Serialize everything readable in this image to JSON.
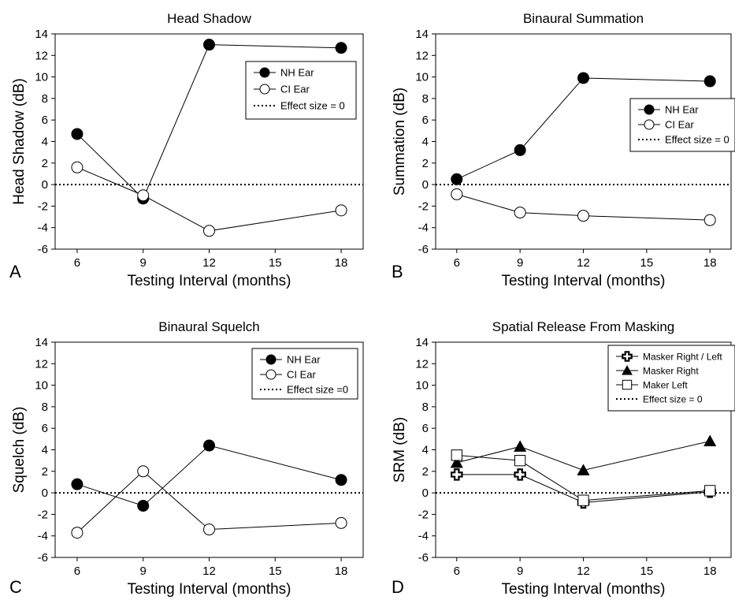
{
  "chart_data": [
    {
      "type": "line",
      "panel_letter": "A",
      "title": "Head Shadow",
      "xlabel": "Testing Interval (months)",
      "ylabel": "Head Shadow (dB)",
      "xlim": [
        5,
        19
      ],
      "ylim": [
        -6,
        14
      ],
      "xticks": [
        6,
        9,
        12,
        15,
        18
      ],
      "yticks": [
        -6,
        -4,
        -2,
        0,
        2,
        4,
        6,
        8,
        10,
        12,
        14
      ],
      "x": [
        6,
        9,
        12,
        18
      ],
      "legend_placement": "top-right",
      "series": [
        {
          "name": "NH Ear",
          "marker": "filled-circle",
          "values": [
            4.7,
            -1.3,
            13.0,
            12.7
          ]
        },
        {
          "name": "CI Ear",
          "marker": "open-circle",
          "values": [
            1.6,
            -1.0,
            -4.3,
            -2.4
          ]
        }
      ],
      "reference_line": {
        "name": "Effect size = 0",
        "y": 0
      }
    },
    {
      "type": "line",
      "panel_letter": "B",
      "title": "Binaural Summation",
      "xlabel": "Testing Interval (months)",
      "ylabel": "Summation (dB)",
      "xlim": [
        5,
        19
      ],
      "ylim": [
        -6,
        14
      ],
      "xticks": [
        6,
        9,
        12,
        15,
        18
      ],
      "yticks": [
        -6,
        -4,
        -2,
        0,
        2,
        4,
        6,
        8,
        10,
        12,
        14
      ],
      "x": [
        6,
        9,
        12,
        18
      ],
      "legend_placement": "right",
      "series": [
        {
          "name": "NH Ear",
          "marker": "filled-circle",
          "values": [
            0.5,
            3.2,
            9.9,
            9.6
          ]
        },
        {
          "name": "CI Ear",
          "marker": "open-circle",
          "values": [
            -0.9,
            -2.6,
            -2.9,
            -3.3
          ]
        }
      ],
      "reference_line": {
        "name": "Effect size = 0",
        "y": 0
      }
    },
    {
      "type": "line",
      "panel_letter": "C",
      "title": "Binaural Squelch",
      "xlabel": "Testing Interval (months)",
      "ylabel": "Squelch (dB)",
      "xlim": [
        5,
        19
      ],
      "ylim": [
        -6,
        14
      ],
      "xticks": [
        6,
        9,
        12,
        15,
        18
      ],
      "yticks": [
        -6,
        -4,
        -2,
        0,
        2,
        4,
        6,
        8,
        10,
        12,
        14
      ],
      "x": [
        6,
        9,
        12,
        18
      ],
      "legend_placement": "top-right",
      "series": [
        {
          "name": "NH Ear",
          "marker": "filled-circle",
          "values": [
            0.8,
            -1.2,
            4.4,
            1.2
          ]
        },
        {
          "name": "CI Ear",
          "marker": "open-circle",
          "values": [
            -3.7,
            2.0,
            -3.4,
            -2.8
          ]
        }
      ],
      "reference_line": {
        "name": "Effect size =0",
        "y": 0
      }
    },
    {
      "type": "line",
      "panel_letter": "D",
      "title": "Spatial Release From Masking",
      "xlabel": "Testing Interval (months)",
      "ylabel": "SRM (dB)",
      "xlim": [
        5,
        19
      ],
      "ylim": [
        -6,
        14
      ],
      "xticks": [
        6,
        9,
        12,
        15,
        18
      ],
      "yticks": [
        -6,
        -4,
        -2,
        0,
        2,
        4,
        6,
        8,
        10,
        12,
        14
      ],
      "x": [
        6,
        9,
        12,
        18
      ],
      "legend_placement": "top-right",
      "series": [
        {
          "name": "Masker Right / Left",
          "marker": "cross",
          "values": [
            1.7,
            1.7,
            -0.9,
            0.1
          ]
        },
        {
          "name": "Masker Right",
          "marker": "filled-triangle",
          "values": [
            2.8,
            4.3,
            2.1,
            4.8
          ]
        },
        {
          "name": "Maker Left",
          "marker": "open-square",
          "values": [
            3.5,
            3.0,
            -0.7,
            0.2
          ]
        }
      ],
      "reference_line": {
        "name": "Effect size = 0",
        "y": 0
      }
    }
  ]
}
